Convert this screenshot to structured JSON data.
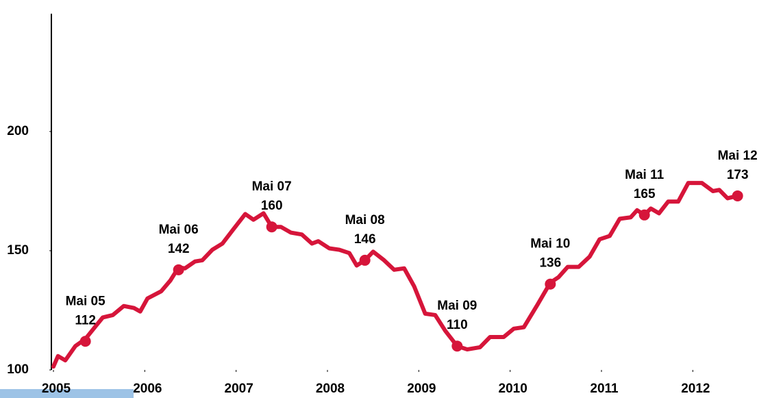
{
  "chart_data": {
    "type": "line",
    "x": [
      2005.0,
      2005.05,
      2005.13,
      2005.24,
      2005.35,
      2005.47,
      2005.54,
      2005.65,
      2005.77,
      2005.88,
      2005.95,
      2006.03,
      2006.18,
      2006.28,
      2006.37,
      2006.44,
      2006.55,
      2006.63,
      2006.74,
      2006.85,
      2006.97,
      2007.1,
      2007.19,
      2007.3,
      2007.39,
      2007.49,
      2007.6,
      2007.72,
      2007.83,
      2007.9,
      2008.02,
      2008.13,
      2008.24,
      2008.32,
      2008.41,
      2008.5,
      2008.62,
      2008.73,
      2008.84,
      2008.95,
      2009.07,
      2009.18,
      2009.29,
      2009.42,
      2009.53,
      2009.67,
      2009.78,
      2009.93,
      2010.04,
      2010.15,
      2010.3,
      2010.44,
      2010.53,
      2010.63,
      2010.75,
      2010.87,
      2010.98,
      2011.09,
      2011.2,
      2011.32,
      2011.39,
      2011.47,
      2011.54,
      2011.63,
      2011.73,
      2011.84,
      2011.95,
      2012.1,
      2012.22,
      2012.29,
      2012.38,
      2012.49
    ],
    "values": [
      101.4,
      105.8,
      104,
      110,
      113,
      118.7,
      122,
      123,
      126.8,
      126,
      124.5,
      130,
      133,
      137.5,
      143,
      142.6,
      145.5,
      146,
      150.4,
      153,
      159,
      165.4,
      163,
      165.7,
      160,
      160,
      157.6,
      156.8,
      153,
      154,
      151,
      150.4,
      149,
      143.8,
      146,
      149.6,
      146,
      142,
      142.6,
      135,
      123.6,
      123,
      116.4,
      110,
      108.6,
      109.5,
      113.8,
      113.8,
      117.3,
      117.9,
      127.4,
      136.6,
      138.9,
      143.2,
      143.2,
      147.5,
      154.8,
      156.2,
      163.4,
      164,
      167,
      165,
      167.7,
      165.7,
      170.6,
      170.6,
      178.4,
      178.4,
      175,
      175.5,
      172,
      173
    ],
    "color": "#d6153a",
    "xlim": [
      2005,
      2012.5
    ],
    "xticks": [
      2005,
      2006,
      2007,
      2008,
      2009,
      2010,
      2011,
      2012
    ],
    "ylim": [
      100,
      250
    ],
    "yticks": [
      100,
      150,
      200
    ],
    "annotations": [
      {
        "x": 2005.35,
        "value": 112,
        "label": "Mai 05"
      },
      {
        "x": 2006.37,
        "value": 142,
        "label": "Mai 06"
      },
      {
        "x": 2007.39,
        "value": 160,
        "label": "Mai 07"
      },
      {
        "x": 2008.41,
        "value": 146,
        "label": "Mai 08"
      },
      {
        "x": 2009.42,
        "value": 110,
        "label": "Mai 09"
      },
      {
        "x": 2010.44,
        "value": 136,
        "label": "Mai 10"
      },
      {
        "x": 2011.47,
        "value": 165,
        "label": "Mai 11"
      },
      {
        "x": 2012.49,
        "value": 173,
        "label": "Mai 12"
      }
    ]
  }
}
